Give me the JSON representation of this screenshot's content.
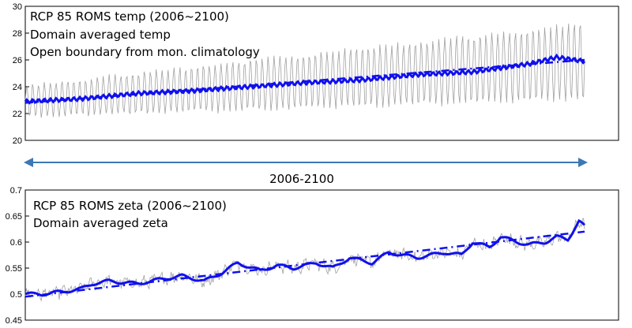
{
  "chart_data": [
    {
      "type": "line",
      "annotations": [
        "RCP 85 ROMS temp (2006~2100)",
        "Domain averaged temp",
        "Open boundary from mon. climatology"
      ],
      "ylim": [
        20,
        30
      ],
      "yticks": [
        "20",
        "22",
        "24",
        "26",
        "28",
        "30"
      ],
      "xlim": [
        0,
        1.0
      ],
      "grid": false,
      "series": [
        {
          "role": "monthly",
          "color": "#a0a0a0",
          "trend_start": 22.9,
          "trend_end": 25.9,
          "seasonal_amp_start": 1.2,
          "seasonal_amp_end": 2.9,
          "points": 560
        },
        {
          "role": "running-mean",
          "color": "#1010ee",
          "x": [
            0.0,
            0.05,
            0.1,
            0.2,
            0.3,
            0.4,
            0.5,
            0.6,
            0.7,
            0.8,
            0.85,
            0.9,
            0.95,
            1.0
          ],
          "values": [
            22.9,
            23.0,
            23.1,
            23.5,
            23.7,
            24.0,
            24.3,
            24.5,
            24.9,
            25.1,
            25.4,
            25.7,
            26.2,
            25.9
          ]
        },
        {
          "role": "trend",
          "color": "#1010ee",
          "x": [
            0.0,
            1.0
          ],
          "values": [
            22.8,
            26.0
          ]
        }
      ]
    },
    {
      "type": "line",
      "annotations": [
        "RCP 85 ROMS zeta (2006~2100)",
        "Domain averaged zeta"
      ],
      "ylim": [
        0.45,
        0.7
      ],
      "yticks": [
        "0.45",
        "0.5",
        "0.55",
        "0.6",
        "0.65",
        "0.7"
      ],
      "xlim": [
        0,
        1.0
      ],
      "grid": false,
      "series": [
        {
          "role": "monthly",
          "color": "#a0a0a0",
          "noise": 0.01,
          "points": 560
        },
        {
          "role": "running-mean",
          "color": "#1010ee",
          "x": [
            0.0,
            0.03,
            0.07,
            0.1,
            0.12,
            0.15,
            0.2,
            0.25,
            0.28,
            0.32,
            0.35,
            0.38,
            0.42,
            0.45,
            0.48,
            0.52,
            0.55,
            0.58,
            0.62,
            0.65,
            0.7,
            0.75,
            0.78,
            0.8,
            0.83,
            0.85,
            0.88,
            0.9,
            0.93,
            0.95,
            0.97,
            0.99,
            1.0
          ],
          "values": [
            0.5,
            0.5,
            0.505,
            0.51,
            0.52,
            0.525,
            0.52,
            0.53,
            0.535,
            0.525,
            0.54,
            0.56,
            0.545,
            0.555,
            0.55,
            0.56,
            0.55,
            0.57,
            0.56,
            0.58,
            0.57,
            0.58,
            0.575,
            0.6,
            0.59,
            0.61,
            0.6,
            0.595,
            0.6,
            0.61,
            0.605,
            0.64,
            0.63
          ]
        },
        {
          "role": "trend",
          "color": "#1010ee",
          "x": [
            0.0,
            1.0
          ],
          "values": [
            0.495,
            0.62
          ]
        }
      ]
    }
  ],
  "span": {
    "label": "2006-2100",
    "color": "#3c78b4"
  }
}
